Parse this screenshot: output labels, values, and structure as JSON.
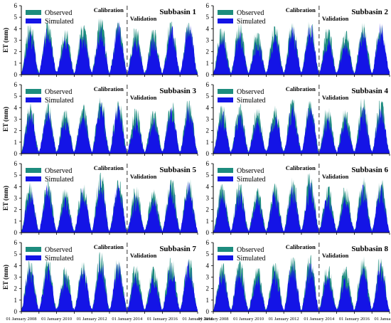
{
  "colors": {
    "observed": "#1d8c7e",
    "simulated": "#1414e6",
    "axis": "#000000",
    "divider": "#555555"
  },
  "shared": {
    "ylabel": "ET (mm)",
    "calibration_label": "Calibration",
    "validation_label": "Validation",
    "yticks": [
      "0",
      "1",
      "2",
      "3",
      "4",
      "5",
      "6"
    ],
    "xtick_labels": [
      "01 January 2008",
      "01 January 2010",
      "01 January 2012",
      "01 January 2014",
      "01 January 2016",
      "01 January 2018"
    ]
  },
  "chart_data": [
    {
      "type": "bar",
      "title": "Subbasin 1",
      "xlabel": "",
      "ylabel": "ET (mm)",
      "ylim": [
        0,
        6
      ],
      "xlim": [
        "2008-01-01",
        "2018-01-01"
      ],
      "legend": "top-left",
      "divider": "2014-01-01",
      "x": [
        "2008-07",
        "2009-07",
        "2010-07",
        "2011-07",
        "2012-07",
        "2013-07",
        "2014-07",
        "2015-07",
        "2016-07",
        "2017-07"
      ],
      "series": [
        {
          "name": "Observed",
          "values": [
            4.4,
            4.5,
            3.9,
            4.3,
            4.9,
            4.5,
            4.0,
            3.9,
            4.6,
            4.5
          ]
        },
        {
          "name": "Simulated",
          "values": [
            4.0,
            4.4,
            3.3,
            3.9,
            4.6,
            4.7,
            3.4,
            3.3,
            4.3,
            4.8
          ]
        }
      ]
    },
    {
      "type": "bar",
      "title": "Subbasin 2",
      "xlabel": "",
      "ylabel": "",
      "ylim": [
        0,
        6
      ],
      "xlim": [
        "2008-01-01",
        "2018-01-01"
      ],
      "legend": "top-left",
      "divider": "2014-01-01",
      "x": [
        "2008-07",
        "2009-07",
        "2010-07",
        "2011-07",
        "2012-07",
        "2013-07",
        "2014-07",
        "2015-07",
        "2016-07",
        "2017-07"
      ],
      "series": [
        {
          "name": "Observed",
          "values": [
            4.1,
            4.5,
            3.9,
            4.2,
            4.5,
            4.9,
            4.0,
            3.8,
            4.6,
            4.3
          ]
        },
        {
          "name": "Simulated",
          "values": [
            3.6,
            3.8,
            3.1,
            3.6,
            4.2,
            4.6,
            3.3,
            3.0,
            3.9,
            4.5
          ]
        }
      ]
    },
    {
      "type": "bar",
      "title": "Subbasin 3",
      "xlabel": "",
      "ylabel": "ET (mm)",
      "ylim": [
        0,
        6
      ],
      "xlim": [
        "2008-01-01",
        "2018-01-01"
      ],
      "legend": "top-left",
      "divider": "2014-01-01",
      "x": [
        "2008-07",
        "2009-07",
        "2010-07",
        "2011-07",
        "2012-07",
        "2013-07",
        "2014-07",
        "2015-07",
        "2016-07",
        "2017-07"
      ],
      "series": [
        {
          "name": "Observed",
          "values": [
            4.4,
            4.5,
            3.8,
            4.3,
            4.9,
            4.6,
            3.9,
            3.8,
            4.6,
            4.6
          ]
        },
        {
          "name": "Simulated",
          "values": [
            3.9,
            4.2,
            3.2,
            3.8,
            4.6,
            4.4,
            3.2,
            3.1,
            4.2,
            4.3
          ]
        }
      ]
    },
    {
      "type": "bar",
      "title": "Subbasin 4",
      "xlabel": "",
      "ylabel": "",
      "ylim": [
        0,
        6
      ],
      "xlim": [
        "2008-01-01",
        "2018-01-01"
      ],
      "legend": "top-left",
      "divider": "2014-01-01",
      "x": [
        "2008-07",
        "2009-07",
        "2010-07",
        "2011-07",
        "2012-07",
        "2013-07",
        "2014-07",
        "2015-07",
        "2016-07",
        "2017-07"
      ],
      "series": [
        {
          "name": "Observed",
          "values": [
            4.2,
            4.3,
            3.9,
            4.2,
            4.7,
            4.6,
            4.0,
            3.9,
            4.8,
            4.6
          ]
        },
        {
          "name": "Simulated",
          "values": [
            3.7,
            3.8,
            3.2,
            3.6,
            4.3,
            4.2,
            3.3,
            3.2,
            4.1,
            4.3
          ]
        }
      ]
    },
    {
      "type": "bar",
      "title": "Subbasin 5",
      "xlabel": "",
      "ylabel": "ET (mm)",
      "ylim": [
        0,
        6
      ],
      "xlim": [
        "2008-01-01",
        "2018-01-01"
      ],
      "legend": "top-left",
      "divider": "2014-01-01",
      "x": [
        "2008-07",
        "2009-07",
        "2010-07",
        "2011-07",
        "2012-07",
        "2013-07",
        "2014-07",
        "2015-07",
        "2016-07",
        "2017-07"
      ],
      "series": [
        {
          "name": "Observed",
          "values": [
            4.4,
            4.5,
            3.8,
            4.2,
            5.2,
            4.6,
            4.0,
            3.8,
            4.6,
            4.7
          ]
        },
        {
          "name": "Simulated",
          "values": [
            4.0,
            4.2,
            3.2,
            3.9,
            4.8,
            4.4,
            3.3,
            3.1,
            4.2,
            4.5
          ]
        }
      ]
    },
    {
      "type": "bar",
      "title": "Subbasin 6",
      "xlabel": "",
      "ylabel": "",
      "ylim": [
        0,
        6
      ],
      "xlim": [
        "2008-01-01",
        "2018-01-01"
      ],
      "legend": "top-left",
      "divider": "2014-01-01",
      "x": [
        "2008-07",
        "2009-07",
        "2010-07",
        "2011-07",
        "2012-07",
        "2013-07",
        "2014-07",
        "2015-07",
        "2016-07",
        "2017-07"
      ],
      "series": [
        {
          "name": "Observed",
          "values": [
            4.2,
            4.5,
            3.9,
            4.3,
            4.8,
            5.2,
            4.0,
            3.9,
            4.9,
            4.7
          ]
        },
        {
          "name": "Simulated",
          "values": [
            3.7,
            3.9,
            3.2,
            3.7,
            4.3,
            4.6,
            3.3,
            3.2,
            4.2,
            4.3
          ]
        }
      ]
    },
    {
      "type": "bar",
      "title": "Subbasin 7",
      "xlabel": "",
      "ylabel": "ET (mm)",
      "ylim": [
        0,
        6
      ],
      "xlim": [
        "2008-01-01",
        "2018-01-01"
      ],
      "legend": "top-left",
      "divider": "2014-01-01",
      "x": [
        "2008-07",
        "2009-07",
        "2010-07",
        "2011-07",
        "2012-07",
        "2013-07",
        "2014-07",
        "2015-07",
        "2016-07",
        "2017-07"
      ],
      "series": [
        {
          "name": "Observed",
          "values": [
            4.4,
            4.5,
            3.9,
            4.4,
            5.2,
            4.6,
            4.0,
            3.9,
            4.7,
            4.6
          ]
        },
        {
          "name": "Simulated",
          "values": [
            4.0,
            4.2,
            3.3,
            3.9,
            4.9,
            4.3,
            3.4,
            3.2,
            4.3,
            4.5
          ]
        }
      ]
    },
    {
      "type": "bar",
      "title": "Subbasin 8",
      "xlabel": "",
      "ylabel": "",
      "ylim": [
        0,
        6
      ],
      "xlim": [
        "2008-01-01",
        "2018-01-01"
      ],
      "legend": "top-left",
      "divider": "2014-01-01",
      "x": [
        "2008-07",
        "2009-07",
        "2010-07",
        "2011-07",
        "2012-07",
        "2013-07",
        "2014-07",
        "2015-07",
        "2016-07",
        "2017-07"
      ],
      "series": [
        {
          "name": "Observed",
          "values": [
            4.2,
            4.4,
            3.9,
            4.2,
            4.7,
            4.9,
            4.0,
            3.9,
            4.8,
            4.7
          ]
        },
        {
          "name": "Simulated",
          "values": [
            3.6,
            3.9,
            3.2,
            3.6,
            4.4,
            4.4,
            3.2,
            3.1,
            4.1,
            4.3
          ]
        }
      ]
    }
  ]
}
